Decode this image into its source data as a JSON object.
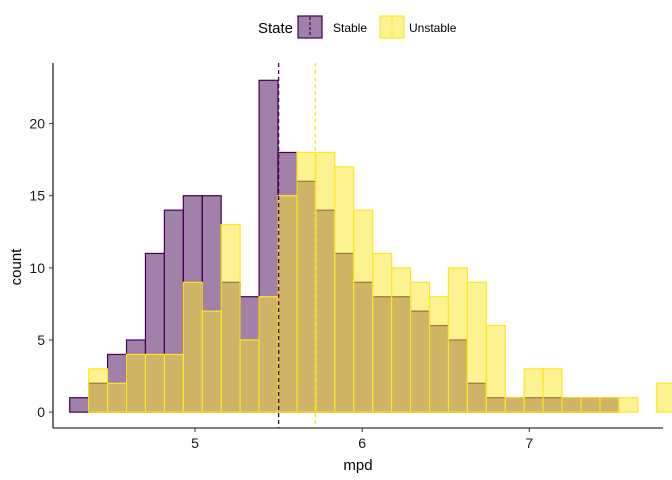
{
  "chart_data": {
    "type": "histogram",
    "xlabel": "mpd",
    "ylabel": "count",
    "xlim": [
      4.15,
      7.8
    ],
    "ylim": [
      -1.1,
      24.2
    ],
    "x_ticks": [
      5,
      6,
      7
    ],
    "y_ticks": [
      0,
      5,
      10,
      15,
      20
    ],
    "grid": false,
    "legend": {
      "title": "State",
      "position": "top"
    },
    "bin_start": 4.25,
    "bin_width": 0.1133,
    "series": [
      {
        "name": "Stable",
        "fill": "#440154",
        "fill_opacity": 0.5,
        "stroke": "#440154",
        "counts": [
          1,
          2,
          4,
          5,
          11,
          14,
          15,
          15,
          9,
          8,
          23,
          18,
          16,
          14,
          11,
          9,
          8,
          8,
          7,
          6,
          5,
          2,
          1,
          1,
          1,
          1,
          1,
          1,
          1,
          0,
          0
        ],
        "mean": 5.5
      },
      {
        "name": "Unstable",
        "fill": "#FDE725",
        "fill_opacity": 0.5,
        "stroke": "#FDE725",
        "counts": [
          0,
          3,
          2,
          4,
          4,
          4,
          9,
          7,
          13,
          5,
          8,
          15,
          18,
          18,
          17,
          14,
          11,
          10,
          9,
          8,
          10,
          9,
          6,
          1,
          3,
          3,
          1,
          1,
          1,
          1,
          0,
          2
        ],
        "mean": 5.72
      }
    ]
  }
}
